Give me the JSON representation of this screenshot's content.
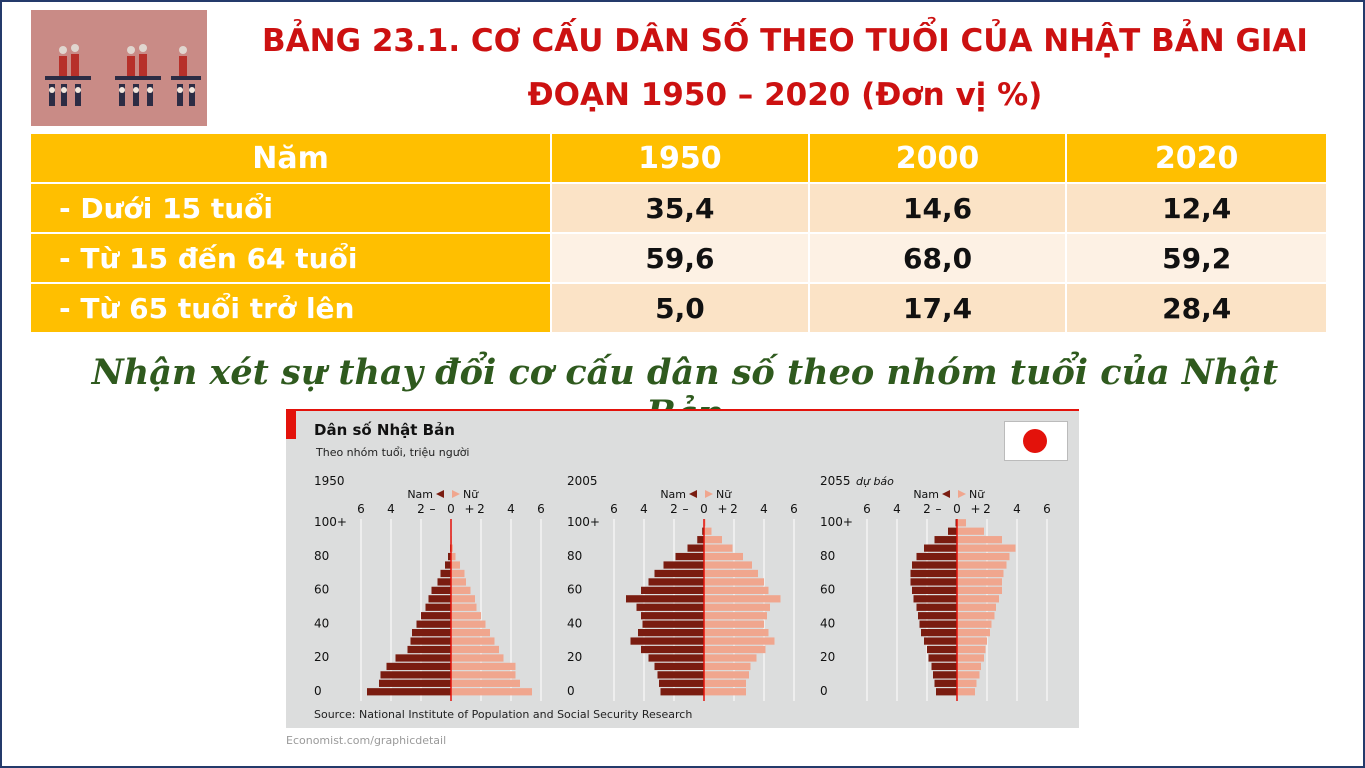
{
  "title": {
    "line1": "BẢNG 23.1. CƠ CẤU DÂN SỐ THEO TUỔI CỦA NHẬT BẢN GIAI",
    "line2": "ĐOẠN 1950 – 2020 (Đơn vị %)"
  },
  "table": {
    "headers": [
      "Năm",
      "1950",
      "2000",
      "2020"
    ],
    "rows": [
      {
        "label": "- Dưới 15 tuổi",
        "values": [
          "35,4",
          "14,6",
          "12,4"
        ]
      },
      {
        "label": "- Từ 15 đến 64 tuổi",
        "values": [
          "59,6",
          "68,0",
          "59,2"
        ]
      },
      {
        "label": "- Từ 65 tuổi trở lên",
        "values": [
          "5,0",
          "17,4",
          "28,4"
        ]
      }
    ]
  },
  "subtitle": "Nhận xét sự thay đổi cơ cấu dân số theo nhóm tuổi của Nhật Bản",
  "chart": {
    "title": "Dân số Nhật Bản",
    "subtitle": "Theo nhóm tuổi, triệu người",
    "source": "Source: National Institute of Population and Social Security Research",
    "credit": "Economist.com/graphicdetail",
    "legend_male": "Nam",
    "legend_female": "Nữ",
    "colors": {
      "male": "#7a1c10",
      "female": "#f0a68e",
      "axis": "#e3120b",
      "accent": "#e3120b",
      "panel": "#dcdddd"
    }
  },
  "chart_data": [
    {
      "type": "bar",
      "title": "1950",
      "title_note": "",
      "xlabel": "triệu người",
      "x_ticks": [
        "6",
        "4",
        "2",
        "0",
        "2",
        "4",
        "6"
      ],
      "y_ticks": [
        "100+",
        "80",
        "60",
        "40",
        "20",
        "0"
      ],
      "categories": [
        0,
        5,
        10,
        15,
        20,
        25,
        30,
        35,
        40,
        45,
        50,
        55,
        60,
        65,
        70,
        75,
        80,
        85,
        90,
        95,
        100
      ],
      "series": [
        {
          "name": "Nam",
          "values": [
            5.6,
            4.8,
            4.7,
            4.3,
            3.7,
            2.9,
            2.7,
            2.6,
            2.3,
            2.0,
            1.7,
            1.5,
            1.3,
            0.9,
            0.7,
            0.4,
            0.2,
            0.06,
            0.02,
            0,
            0
          ]
        },
        {
          "name": "Nữ",
          "values": [
            5.4,
            4.6,
            4.3,
            4.3,
            3.5,
            3.2,
            2.9,
            2.6,
            2.3,
            2.0,
            1.7,
            1.6,
            1.3,
            1.0,
            0.9,
            0.6,
            0.3,
            0.12,
            0.05,
            0.02,
            0
          ]
        }
      ]
    },
    {
      "type": "bar",
      "title": "2005",
      "title_note": "",
      "xlabel": "triệu người",
      "x_ticks": [
        "6",
        "4",
        "2",
        "0",
        "2",
        "4",
        "6"
      ],
      "y_ticks": [
        "100+",
        "80",
        "60",
        "40",
        "20",
        "0"
      ],
      "categories": [
        0,
        5,
        10,
        15,
        20,
        25,
        30,
        35,
        40,
        45,
        50,
        55,
        60,
        65,
        70,
        75,
        80,
        85,
        90,
        95,
        100
      ],
      "series": [
        {
          "name": "Nam",
          "values": [
            2.9,
            3.0,
            3.1,
            3.3,
            3.7,
            4.2,
            4.9,
            4.4,
            4.1,
            4.2,
            4.5,
            5.2,
            4.2,
            3.7,
            3.3,
            2.7,
            1.9,
            1.1,
            0.45,
            0.12,
            0.02
          ]
        },
        {
          "name": "Nữ",
          "values": [
            2.8,
            2.8,
            3.0,
            3.1,
            3.5,
            4.1,
            4.7,
            4.3,
            4.0,
            4.2,
            4.4,
            5.1,
            4.3,
            4.0,
            3.6,
            3.2,
            2.6,
            1.9,
            1.2,
            0.5,
            0.1
          ]
        }
      ]
    },
    {
      "type": "bar",
      "title": "2055",
      "title_note": "dự báo",
      "xlabel": "triệu người",
      "x_ticks": [
        "6",
        "4",
        "2",
        "0",
        "2",
        "4",
        "6"
      ],
      "y_ticks": [
        "100+",
        "80",
        "60",
        "40",
        "20",
        "0"
      ],
      "categories": [
        0,
        5,
        10,
        15,
        20,
        25,
        30,
        35,
        40,
        45,
        50,
        55,
        60,
        65,
        70,
        75,
        80,
        85,
        90,
        95,
        100
      ],
      "series": [
        {
          "name": "Nam",
          "values": [
            1.4,
            1.5,
            1.6,
            1.7,
            1.9,
            2.0,
            2.2,
            2.4,
            2.5,
            2.6,
            2.7,
            2.9,
            3.0,
            3.1,
            3.1,
            3.0,
            2.7,
            2.2,
            1.5,
            0.6,
            0.1
          ]
        },
        {
          "name": "Nữ",
          "values": [
            1.2,
            1.3,
            1.5,
            1.6,
            1.8,
            1.9,
            2.0,
            2.2,
            2.3,
            2.5,
            2.6,
            2.8,
            3.0,
            3.0,
            3.1,
            3.3,
            3.5,
            3.9,
            3.0,
            1.8,
            0.6
          ]
        }
      ]
    }
  ]
}
